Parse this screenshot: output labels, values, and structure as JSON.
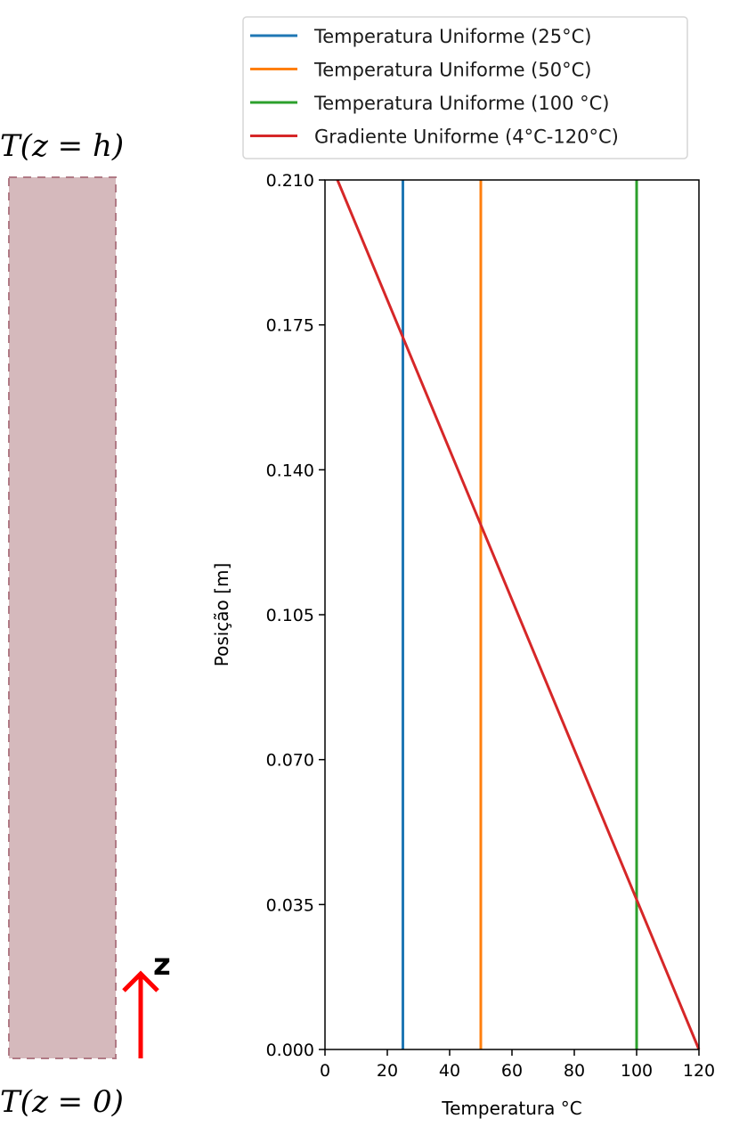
{
  "diagram": {
    "top_label": "T(z = h)",
    "bottom_label": "T(z = 0)",
    "axis_label": "z",
    "slab_fill": "#d5b9bc",
    "slab_border": "#b07a85",
    "arrow_color": "#ff0000"
  },
  "chart_data": {
    "type": "line",
    "xlabel": "Temperatura °C",
    "ylabel": "Posição [m]",
    "xlim": [
      0,
      120
    ],
    "ylim": [
      0,
      0.21
    ],
    "xticks": [
      "0",
      "20",
      "40",
      "60",
      "80",
      "100",
      "120"
    ],
    "yticks": [
      "0.000",
      "0.035",
      "0.070",
      "0.105",
      "0.140",
      "0.175",
      "0.210"
    ],
    "grid": false,
    "legend_position": "top",
    "series": [
      {
        "name": "Temperatura Uniforme (25°C)",
        "color": "#1f77b4",
        "points": [
          [
            25,
            0
          ],
          [
            25,
            0.21
          ]
        ]
      },
      {
        "name": "Temperatura Uniforme (50°C)",
        "color": "#ff7f0e",
        "points": [
          [
            50,
            0
          ],
          [
            50,
            0.21
          ]
        ]
      },
      {
        "name": "Temperatura Uniforme (100 °C)",
        "color": "#2ca02c",
        "points": [
          [
            100,
            0
          ],
          [
            100,
            0.21
          ]
        ]
      },
      {
        "name": "Gradiente Uniforme (4°C-120°C)",
        "color": "#d62728",
        "points": [
          [
            120,
            0
          ],
          [
            4,
            0.21
          ]
        ]
      }
    ]
  }
}
